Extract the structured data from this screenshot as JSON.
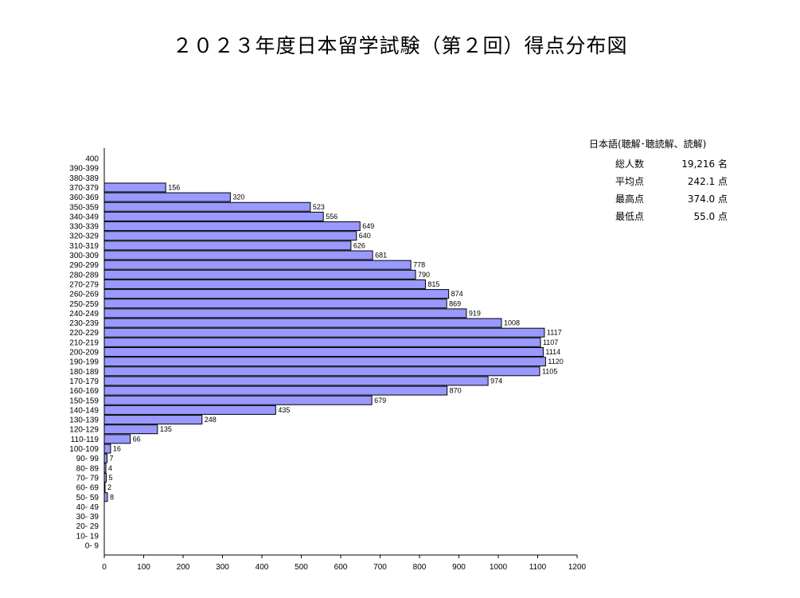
{
  "title": "２０２３年度日本留学試験（第２回）得点分布図",
  "stats": {
    "header": "日本語(聴解･聴読解、読解)",
    "rows": [
      {
        "label": "総人数",
        "value": "19,216 名"
      },
      {
        "label": "平均点",
        "value": "242.1 点"
      },
      {
        "label": "最高点",
        "value": "374.0 点"
      },
      {
        "label": "最低点",
        "value": "55.0 点"
      }
    ]
  },
  "colors": {
    "bar_fill": "#9999ff",
    "bar_stroke": "#000000",
    "axis": "#000000"
  },
  "chart_data": {
    "type": "bar",
    "orientation": "horizontal",
    "title": "２０２３年度日本留学試験（第２回）得点分布図",
    "xlim": [
      0,
      1200
    ],
    "x_ticks": [
      0,
      100,
      200,
      300,
      400,
      500,
      600,
      700,
      800,
      900,
      1000,
      1100,
      1200
    ],
    "categories": [
      "400",
      "390-399",
      "380-389",
      "370-379",
      "360-369",
      "350-359",
      "340-349",
      "330-339",
      "320-329",
      "310-319",
      "300-309",
      "290-299",
      "280-289",
      "270-279",
      "260-269",
      "250-259",
      "240-249",
      "230-239",
      "220-229",
      "210-219",
      "200-209",
      "190-199",
      "180-189",
      "170-179",
      "160-169",
      "150-159",
      "140-149",
      "130-139",
      "120-129",
      "110-119",
      "100-109",
      "90- 99",
      "80- 89",
      "70- 79",
      "60- 69",
      "50- 59",
      "40- 49",
      "30- 39",
      "20- 29",
      "10- 19",
      "0- 9"
    ],
    "values": [
      null,
      null,
      null,
      156,
      320,
      523,
      556,
      649,
      640,
      626,
      681,
      778,
      790,
      815,
      874,
      869,
      919,
      1008,
      1117,
      1107,
      1114,
      1120,
      1105,
      974,
      870,
      679,
      435,
      248,
      135,
      66,
      16,
      7,
      4,
      5,
      2,
      8,
      null,
      null,
      null,
      null,
      null
    ]
  }
}
